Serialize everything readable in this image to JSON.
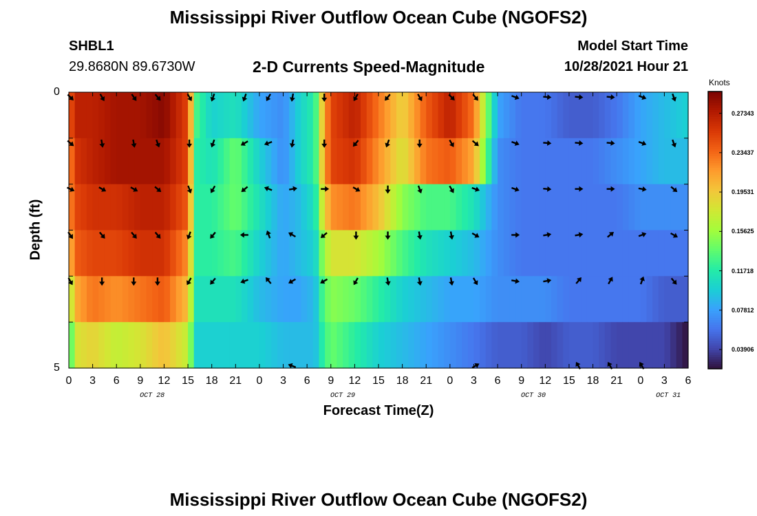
{
  "page": {
    "title": "Mississippi River Outflow Ocean Cube (NGOFS2)",
    "bottom_title": "Mississippi River Outflow Ocean Cube (NGOFS2)",
    "station_id": "SHBL1",
    "station_coords": "29.8680N  89.6730W",
    "model_start_label": "Model Start Time",
    "model_start_value": "10/28/2021 Hour 21"
  },
  "colors": {
    "colormap": [
      "#30123b",
      "#4145ab",
      "#4675ed",
      "#39a2fc",
      "#1bcfd4",
      "#24eca6",
      "#61fc6c",
      "#a4fc3b",
      "#d1e834",
      "#f3c63a",
      "#fe9b2d",
      "#f36315",
      "#d93806",
      "#b11901",
      "#7a0402"
    ],
    "arrow": "#000000"
  },
  "chart_data": {
    "type": "heatmap",
    "title": "2-D Currents Speed-Magnitude",
    "xlabel": "Forecast Time(Z)",
    "ylabel": "Depth (ft)",
    "ylim": [
      0,
      5
    ],
    "y_tick_labels": [
      "0",
      "5"
    ],
    "x_tick_labels": [
      "0",
      "3",
      "6",
      "9",
      "12",
      "15",
      "18",
      "21",
      "0",
      "3",
      "6",
      "9",
      "12",
      "15",
      "18",
      "21",
      "0",
      "3",
      "6",
      "9",
      "12",
      "15",
      "18",
      "21",
      "0",
      "3",
      "6"
    ],
    "x_hours": [
      0,
      3,
      6,
      9,
      12,
      15,
      18,
      21,
      24,
      27,
      30,
      33,
      36,
      39,
      42,
      45,
      48,
      51,
      54,
      57,
      60,
      63,
      66,
      69,
      72,
      75,
      78
    ],
    "date_labels": [
      {
        "text": "OCT 28",
        "hour": 10.5
      },
      {
        "text": "OCT 29",
        "hour": 34.5
      },
      {
        "text": "OCT 30",
        "hour": 58.5
      },
      {
        "text": "OCT 31",
        "hour": 75.5
      }
    ],
    "colorbar": {
      "unit": "Knots",
      "range": [
        0.02,
        0.295
      ],
      "tick_labels": [
        "0.27343",
        "0.23437",
        "0.19531",
        "0.15625",
        "0.11718",
        "0.07812",
        "0.03906"
      ],
      "tick_values": [
        0.27343,
        0.23437,
        0.19531,
        0.15625,
        0.11718,
        0.07812,
        0.03906
      ]
    },
    "time_hours": [
      0,
      1,
      3,
      6,
      9,
      12,
      15,
      16,
      18,
      21,
      24,
      27,
      29,
      31,
      32,
      33,
      36,
      39,
      42,
      45,
      48,
      51,
      54,
      57,
      60,
      63,
      66,
      69,
      72,
      75,
      78
    ],
    "layers": [
      {
        "speed": [
          0.24,
          0.27,
          0.27,
          0.28,
          0.28,
          0.29,
          0.25,
          0.13,
          0.1,
          0.11,
          0.08,
          0.07,
          0.1,
          0.12,
          0.2,
          0.25,
          0.27,
          0.23,
          0.19,
          0.24,
          0.27,
          0.23,
          0.08,
          0.06,
          0.06,
          0.05,
          0.05,
          0.06,
          0.08,
          0.09,
          0.1
        ]
      },
      {
        "speed": [
          0.22,
          0.26,
          0.27,
          0.28,
          0.28,
          0.28,
          0.25,
          0.12,
          0.11,
          0.14,
          0.1,
          0.07,
          0.1,
          0.12,
          0.2,
          0.25,
          0.26,
          0.22,
          0.18,
          0.23,
          0.24,
          0.21,
          0.07,
          0.06,
          0.06,
          0.06,
          0.06,
          0.07,
          0.08,
          0.09,
          0.09
        ]
      },
      {
        "speed": [
          0.22,
          0.25,
          0.26,
          0.26,
          0.27,
          0.27,
          0.24,
          0.12,
          0.12,
          0.14,
          0.11,
          0.08,
          0.09,
          0.11,
          0.18,
          0.22,
          0.23,
          0.2,
          0.15,
          0.13,
          0.13,
          0.11,
          0.07,
          0.06,
          0.06,
          0.06,
          0.06,
          0.06,
          0.07,
          0.07,
          0.07
        ]
      },
      {
        "speed": [
          0.2,
          0.24,
          0.25,
          0.25,
          0.26,
          0.26,
          0.22,
          0.12,
          0.12,
          0.13,
          0.1,
          0.08,
          0.09,
          0.1,
          0.15,
          0.18,
          0.18,
          0.16,
          0.13,
          0.11,
          0.1,
          0.09,
          0.07,
          0.06,
          0.06,
          0.06,
          0.06,
          0.06,
          0.06,
          0.06,
          0.06
        ]
      },
      {
        "speed": [
          0.16,
          0.21,
          0.23,
          0.22,
          0.23,
          0.24,
          0.2,
          0.11,
          0.11,
          0.11,
          0.09,
          0.08,
          0.08,
          0.09,
          0.13,
          0.15,
          0.14,
          0.12,
          0.1,
          0.09,
          0.08,
          0.08,
          0.07,
          0.07,
          0.07,
          0.06,
          0.06,
          0.06,
          0.06,
          0.05,
          0.05
        ]
      },
      {
        "speed": [
          0.12,
          0.18,
          0.19,
          0.17,
          0.18,
          0.2,
          0.17,
          0.1,
          0.1,
          0.1,
          0.1,
          0.09,
          0.09,
          0.09,
          0.12,
          0.14,
          0.12,
          0.1,
          0.09,
          0.08,
          0.07,
          0.06,
          0.05,
          0.05,
          0.04,
          0.05,
          0.05,
          0.04,
          0.04,
          0.04,
          0.02
        ]
      }
    ],
    "vector_times": [
      0,
      4,
      8,
      11,
      15,
      18,
      22,
      25,
      28,
      32,
      36,
      40,
      44,
      48,
      51,
      56,
      60,
      64,
      68,
      72,
      76
    ],
    "vectors_direction_deg": [
      [
        135,
        150,
        145,
        140,
        150,
        200,
        200,
        210,
        190,
        180,
        210,
        220,
        150,
        135,
        140,
        110,
        95,
        95,
        95,
        110,
        160
      ],
      [
        130,
        170,
        170,
        160,
        180,
        200,
        240,
        250,
        190,
        180,
        220,
        200,
        180,
        150,
        130,
        110,
        95,
        95,
        95,
        110,
        160
      ],
      [
        115,
        120,
        120,
        130,
        160,
        210,
        230,
        290,
        80,
        90,
        120,
        180,
        160,
        150,
        110,
        110,
        95,
        90,
        90,
        100,
        130
      ],
      [
        145,
        140,
        140,
        140,
        200,
        220,
        270,
        340,
        300,
        230,
        180,
        180,
        170,
        170,
        120,
        90,
        80,
        80,
        50,
        70,
        120
      ],
      [
        150,
        180,
        180,
        180,
        210,
        220,
        250,
        320,
        240,
        240,
        210,
        170,
        170,
        170,
        150,
        100,
        80,
        40,
        30,
        20,
        140
      ],
      [
        null,
        null,
        null,
        null,
        null,
        null,
        null,
        null,
        290,
        null,
        null,
        null,
        null,
        null,
        60,
        null,
        null,
        330,
        330,
        330,
        null
      ]
    ]
  }
}
